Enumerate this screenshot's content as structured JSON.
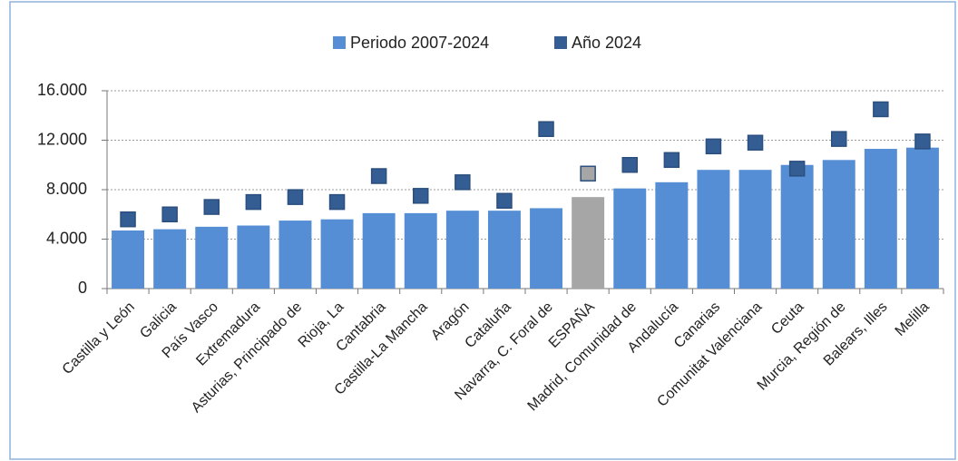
{
  "chart_data": {
    "type": "bar",
    "categories": [
      "Castilla y León",
      "Galicia",
      "País Vasco",
      "Extremadura",
      "Asturias, Principado de",
      "Rioja, La",
      "Cantabria",
      "Castilla-La Mancha",
      "Aragón",
      "Cataluña",
      "Navarra, C. Foral de",
      "ESPAÑA",
      "Madrid, Comunidad de",
      "Andalucía",
      "Canarias",
      "Comunitat Valenciana",
      "Ceuta",
      "Murcia, Región de",
      "Balears, Illes",
      "Melilla"
    ],
    "series": [
      {
        "name": "Periodo 2007-2024",
        "type": "bar",
        "color": "#558ed5",
        "colors": [
          "#558ed5",
          "#558ed5",
          "#558ed5",
          "#558ed5",
          "#558ed5",
          "#558ed5",
          "#558ed5",
          "#558ed5",
          "#558ed5",
          "#558ed5",
          "#558ed5",
          "#a6a6a6",
          "#558ed5",
          "#558ed5",
          "#558ed5",
          "#558ed5",
          "#558ed5",
          "#558ed5",
          "#558ed5",
          "#558ed5"
        ],
        "values": [
          4700,
          4800,
          5000,
          5100,
          5500,
          5600,
          6100,
          6100,
          6300,
          6300,
          6500,
          7400,
          8100,
          8600,
          9600,
          9600,
          10000,
          10400,
          11300,
          11400
        ]
      },
      {
        "name": "Año 2024",
        "type": "scatter",
        "color": "#345d94",
        "colors": [
          "#345d94",
          "#345d94",
          "#345d94",
          "#345d94",
          "#345d94",
          "#345d94",
          "#345d94",
          "#345d94",
          "#345d94",
          "#345d94",
          "#345d94",
          "#a6a6a6",
          "#345d94",
          "#345d94",
          "#345d94",
          "#345d94",
          "#345d94",
          "#345d94",
          "#345d94",
          "#345d94"
        ],
        "values": [
          5600,
          6000,
          6600,
          7000,
          7400,
          7000,
          9100,
          7500,
          8600,
          7100,
          12900,
          9300,
          10000,
          10400,
          11500,
          11800,
          9700,
          12100,
          14500,
          11900
        ]
      }
    ],
    "ylim": [
      0,
      16000
    ],
    "yticks": [
      0,
      {
        "value": 4000,
        "label": "4.000"
      },
      {
        "value": 8000,
        "label": "8.000"
      },
      {
        "value": 12000,
        "label": "12.000"
      },
      {
        "value": 16000,
        "label": "16.000"
      }
    ],
    "grid": true,
    "legend": "top"
  }
}
